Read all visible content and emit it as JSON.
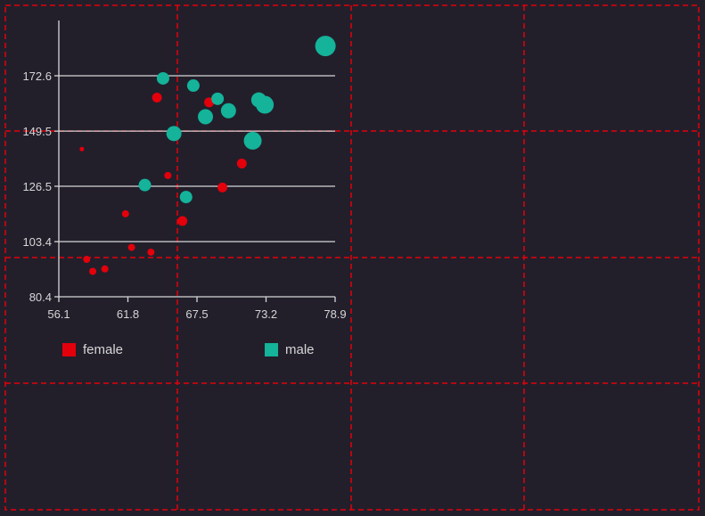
{
  "colors": {
    "background": "#221f2b",
    "guide": "#e3000b",
    "axis": "#d6d6d6",
    "female": "#e3000b",
    "male": "#14b39a"
  },
  "chart_data": {
    "type": "scatter",
    "title": "",
    "xlabel": "",
    "ylabel": "",
    "xlim": [
      56.1,
      78.9
    ],
    "ylim": [
      80.4,
      190
    ],
    "x_ticks": [
      "56.1",
      "61.8",
      "67.5",
      "73.2",
      "78.9"
    ],
    "y_ticks": [
      "80.4",
      "103.4",
      "126.5",
      "149.5",
      "172.6"
    ],
    "grid": "horizontal",
    "legend_position": "bottom",
    "series": [
      {
        "name": "female",
        "color": "#e3000b",
        "points": [
          {
            "x": 58.0,
            "y": 142.0,
            "size": 1
          },
          {
            "x": 58.4,
            "y": 96.0,
            "size": 2
          },
          {
            "x": 58.9,
            "y": 91.0,
            "size": 2
          },
          {
            "x": 59.9,
            "y": 92.0,
            "size": 2
          },
          {
            "x": 61.6,
            "y": 115.0,
            "size": 2
          },
          {
            "x": 62.1,
            "y": 101.0,
            "size": 2
          },
          {
            "x": 63.7,
            "y": 99.0,
            "size": 2
          },
          {
            "x": 64.2,
            "y": 163.5,
            "size": 3
          },
          {
            "x": 65.1,
            "y": 131.0,
            "size": 2
          },
          {
            "x": 66.3,
            "y": 112.0,
            "size": 3
          },
          {
            "x": 68.5,
            "y": 161.5,
            "size": 3
          },
          {
            "x": 69.6,
            "y": 126.0,
            "size": 3
          },
          {
            "x": 71.2,
            "y": 136.0,
            "size": 3
          }
        ]
      },
      {
        "name": "male",
        "color": "#14b39a",
        "points": [
          {
            "x": 63.2,
            "y": 127.0,
            "size": 4
          },
          {
            "x": 64.7,
            "y": 171.5,
            "size": 4
          },
          {
            "x": 65.6,
            "y": 148.5,
            "size": 5
          },
          {
            "x": 66.6,
            "y": 122.0,
            "size": 4
          },
          {
            "x": 67.2,
            "y": 168.5,
            "size": 4
          },
          {
            "x": 68.2,
            "y": 155.5,
            "size": 5
          },
          {
            "x": 69.2,
            "y": 163.0,
            "size": 4
          },
          {
            "x": 70.1,
            "y": 158.0,
            "size": 5
          },
          {
            "x": 72.1,
            "y": 145.5,
            "size": 6
          },
          {
            "x": 72.6,
            "y": 162.5,
            "size": 5
          },
          {
            "x": 73.1,
            "y": 160.5,
            "size": 6
          },
          {
            "x": 78.1,
            "y": 185.0,
            "size": 7
          }
        ]
      }
    ]
  }
}
